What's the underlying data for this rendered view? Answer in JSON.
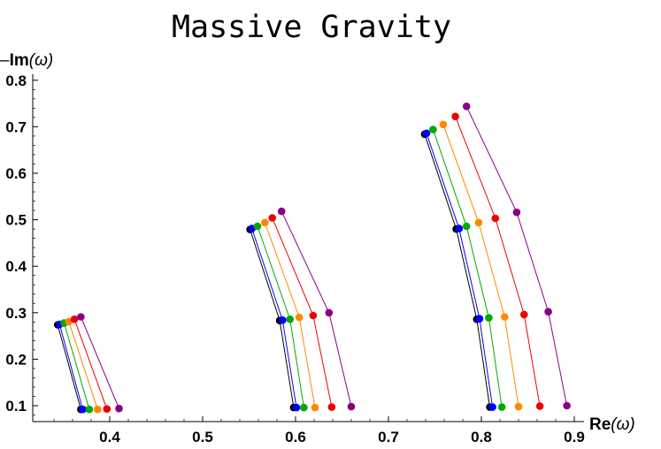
{
  "chart_data": {
    "type": "scatter",
    "title": "Massive Gravity",
    "xlabel": {
      "main": "Re",
      "arg": "(ω)"
    },
    "ylabel": {
      "prefix": "–",
      "main": "Im",
      "arg": "(ω)"
    },
    "xlim": [
      0.33,
      0.92
    ],
    "ylim": [
      0.07,
      0.81
    ],
    "xticks": [
      "0.4",
      "0.5",
      "0.6",
      "0.7",
      "0.8",
      "0.9"
    ],
    "yticks": [
      "0.1",
      "0.2",
      "0.3",
      "0.4",
      "0.5",
      "0.6",
      "0.7",
      "0.8"
    ],
    "grid": false,
    "series": [
      {
        "color": "#000000",
        "groups": [
          [
            [
              0.344,
              0.274
            ],
            [
              0.369,
              0.092
            ]
          ],
          [
            [
              0.551,
              0.479
            ],
            [
              0.583,
              0.283
            ],
            [
              0.598,
              0.096
            ]
          ],
          [
            [
              0.739,
              0.684
            ],
            [
              0.773,
              0.48
            ],
            [
              0.795,
              0.286
            ],
            [
              0.809,
              0.097
            ]
          ]
        ]
      },
      {
        "color": "#0000ff",
        "groups": [
          [
            [
              0.346,
              0.275
            ],
            [
              0.371,
              0.092
            ]
          ],
          [
            [
              0.553,
              0.481
            ],
            [
              0.586,
              0.284
            ],
            [
              0.601,
              0.096
            ]
          ],
          [
            [
              0.741,
              0.686
            ],
            [
              0.776,
              0.481
            ],
            [
              0.798,
              0.287
            ],
            [
              0.812,
              0.097
            ]
          ]
        ]
      },
      {
        "color": "#00aa00",
        "groups": [
          [
            [
              0.351,
              0.278
            ],
            [
              0.378,
              0.092
            ]
          ],
          [
            [
              0.559,
              0.486
            ],
            [
              0.594,
              0.286
            ],
            [
              0.609,
              0.096
            ]
          ],
          [
            [
              0.748,
              0.694
            ],
            [
              0.784,
              0.486
            ],
            [
              0.808,
              0.289
            ],
            [
              0.822,
              0.097
            ]
          ]
        ]
      },
      {
        "color": "#ff8800",
        "groups": [
          [
            [
              0.356,
              0.281
            ],
            [
              0.387,
              0.092
            ]
          ],
          [
            [
              0.567,
              0.494
            ],
            [
              0.604,
              0.29
            ],
            [
              0.621,
              0.096
            ]
          ],
          [
            [
              0.759,
              0.705
            ],
            [
              0.797,
              0.494
            ],
            [
              0.825,
              0.291
            ],
            [
              0.84,
              0.098
            ]
          ]
        ]
      },
      {
        "color": "#ee0000",
        "groups": [
          [
            [
              0.362,
              0.286
            ],
            [
              0.397,
              0.093
            ]
          ],
          [
            [
              0.575,
              0.504
            ],
            [
              0.619,
              0.294
            ],
            [
              0.639,
              0.097
            ]
          ],
          [
            [
              0.772,
              0.722
            ],
            [
              0.815,
              0.503
            ],
            [
              0.846,
              0.296
            ],
            [
              0.863,
              0.099
            ]
          ]
        ]
      },
      {
        "color": "#880088",
        "groups": [
          [
            [
              0.369,
              0.291
            ],
            [
              0.41,
              0.094
            ]
          ],
          [
            [
              0.585,
              0.518
            ],
            [
              0.636,
              0.3
            ],
            [
              0.66,
              0.098
            ]
          ],
          [
            [
              0.784,
              0.744
            ],
            [
              0.838,
              0.516
            ],
            [
              0.872,
              0.302
            ],
            [
              0.892,
              0.1
            ]
          ]
        ]
      }
    ]
  }
}
